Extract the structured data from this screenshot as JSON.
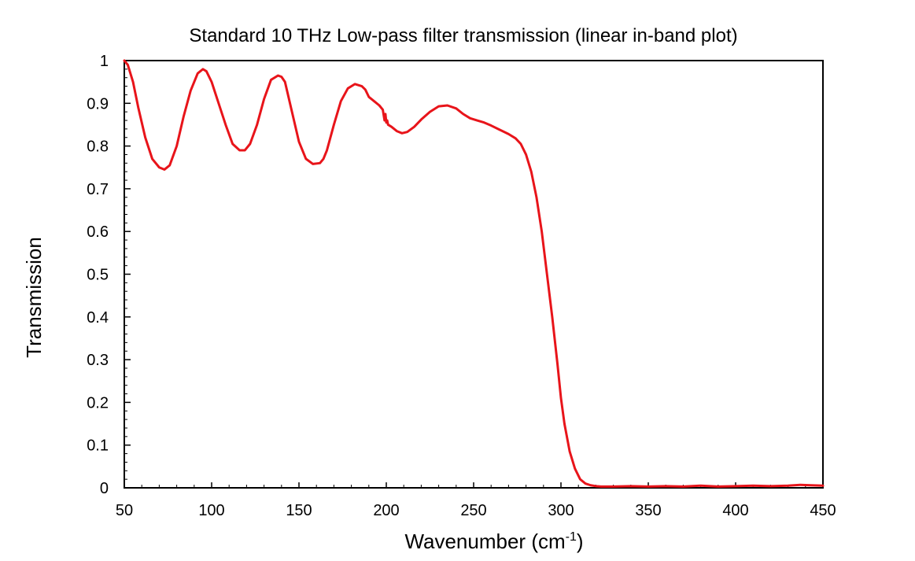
{
  "chart_data": {
    "type": "line",
    "title": "Standard 10 THz Low-pass filter transmission (linear in-band plot)",
    "xlabel": "Wavenumber  (cm",
    "xlabel_superscript": "-1",
    "xlabel_suffix": ")",
    "ylabel": "Transmission",
    "xlim": [
      50,
      450
    ],
    "ylim": [
      0,
      1
    ],
    "x_ticks": [
      "50",
      "100",
      "150",
      "200",
      "250",
      "300",
      "350",
      "400",
      "450"
    ],
    "y_ticks": [
      "0",
      "0.1",
      "0.2",
      "0.3",
      "0.4",
      "0.5",
      "0.6",
      "0.7",
      "0.8",
      "0.9",
      "1"
    ],
    "grid": false,
    "legend": "none",
    "series": [
      {
        "name": "Transmission",
        "color": "#e8141a",
        "x": [
          50,
          52,
          55,
          58,
          62,
          66,
          70,
          73,
          76,
          80,
          84,
          88,
          92,
          95,
          97,
          100,
          104,
          108,
          112,
          116,
          119,
          122,
          126,
          130,
          134,
          138,
          140,
          142,
          146,
          150,
          154,
          158,
          162,
          164,
          166,
          170,
          174,
          178,
          182,
          186,
          188,
          190,
          193,
          196,
          198,
          199,
          199.5,
          200,
          200.5,
          201,
          203,
          206,
          209,
          212,
          216,
          220,
          225,
          230,
          235,
          240,
          244,
          248,
          252,
          256,
          260,
          265,
          270,
          274,
          277,
          280,
          283,
          286,
          289,
          292,
          295,
          298,
          300,
          302,
          305,
          308,
          311,
          314,
          317,
          320,
          323,
          326,
          330,
          340,
          350,
          360,
          370,
          380,
          390,
          400,
          410,
          420,
          430,
          437,
          443,
          450
        ],
        "y": [
          1.0,
          0.99,
          0.95,
          0.89,
          0.82,
          0.77,
          0.75,
          0.745,
          0.755,
          0.8,
          0.87,
          0.93,
          0.97,
          0.98,
          0.975,
          0.95,
          0.9,
          0.85,
          0.805,
          0.79,
          0.79,
          0.805,
          0.85,
          0.91,
          0.955,
          0.965,
          0.962,
          0.95,
          0.88,
          0.81,
          0.77,
          0.758,
          0.76,
          0.77,
          0.79,
          0.85,
          0.905,
          0.935,
          0.945,
          0.94,
          0.932,
          0.915,
          0.905,
          0.895,
          0.885,
          0.86,
          0.875,
          0.855,
          0.86,
          0.85,
          0.845,
          0.835,
          0.83,
          0.833,
          0.845,
          0.862,
          0.88,
          0.893,
          0.895,
          0.888,
          0.875,
          0.865,
          0.86,
          0.855,
          0.848,
          0.838,
          0.828,
          0.818,
          0.805,
          0.78,
          0.74,
          0.68,
          0.6,
          0.5,
          0.4,
          0.29,
          0.21,
          0.15,
          0.085,
          0.045,
          0.02,
          0.01,
          0.006,
          0.004,
          0.003,
          0.003,
          0.003,
          0.004,
          0.003,
          0.004,
          0.003,
          0.005,
          0.003,
          0.004,
          0.005,
          0.004,
          0.005,
          0.007,
          0.006,
          0.005
        ]
      }
    ]
  }
}
